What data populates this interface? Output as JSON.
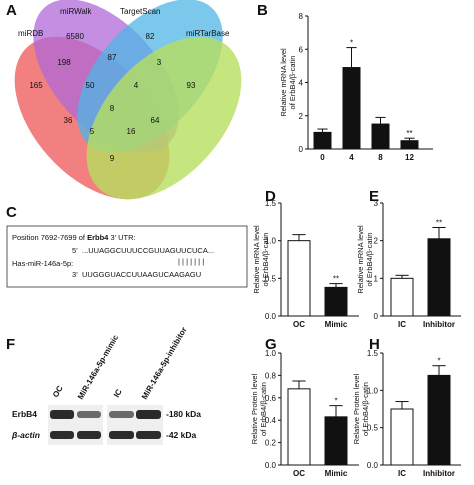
{
  "panels": {
    "A": "A",
    "B": "B",
    "C": "C",
    "D": "D",
    "E": "E",
    "F": "F",
    "G": "G",
    "H": "H"
  },
  "venn": {
    "sets": [
      {
        "name": "miRDB",
        "color": "#f06a6a"
      },
      {
        "name": "miRWalk",
        "color": "#b06ad8"
      },
      {
        "name": "TargetScan",
        "color": "#4fb5e6"
      },
      {
        "name": "miRTarBase",
        "color": "#b7df5e"
      }
    ],
    "regions": [
      "6580",
      "82",
      "165",
      "93",
      "198",
      "87",
      "3",
      "50",
      "4",
      "8",
      "36",
      "64",
      "5",
      "16",
      "9"
    ]
  },
  "sequence": {
    "position_text": "Position 7692-7699 of",
    "gene": "Erbb4",
    "utr": "3’ UTR:",
    "line1_prefix": "5’",
    "line1_seq": "...UUAGGCUUUCCGUUAGUUCUCA...",
    "bars": "| | | | | | |",
    "line2_label": "Has-miR-146a-5p:",
    "line2_prefix": "3’",
    "line2_seq": "UUGGGUACCUUAAGUCAAGAGU"
  },
  "western": {
    "columns": [
      "OC",
      "MiR-146a-5p-mimic",
      "IC",
      "MiR-146a-5p-inhibitor"
    ],
    "rows": [
      {
        "label": "ErbB4",
        "size": "-180 kDa"
      },
      {
        "label": "β-actin",
        "size": "-42 kDa"
      }
    ]
  },
  "chart_data": [
    {
      "panel": "B",
      "type": "bar",
      "categories": [
        "0",
        "4",
        "8",
        "12"
      ],
      "values": [
        1.0,
        4.9,
        1.5,
        0.5
      ],
      "errors": [
        0.2,
        1.2,
        0.4,
        0.15
      ],
      "significance": [
        "",
        "*",
        "",
        "**"
      ],
      "ylabel": "Relative mRNA level of ErbB4/β-catin",
      "ylim": [
        0,
        8
      ],
      "yticks": [
        "0",
        "2",
        "4",
        "6",
        "8"
      ],
      "color": "#111111"
    },
    {
      "panel": "D",
      "type": "bar",
      "categories": [
        "OC",
        "Mimic"
      ],
      "values": [
        1.0,
        0.38
      ],
      "errors": [
        0.08,
        0.05
      ],
      "significance": [
        "",
        "**"
      ],
      "ylabel": "Relative mRNA level of ErbB4/β-catin",
      "ylim": [
        0,
        1.5
      ],
      "yticks": [
        "0.0",
        "0.5",
        "1.0",
        "1.5"
      ],
      "fills": [
        "#ffffff",
        "#111111"
      ]
    },
    {
      "panel": "E",
      "type": "bar",
      "categories": [
        "IC",
        "Inhibitor"
      ],
      "values": [
        1.0,
        2.05
      ],
      "errors": [
        0.08,
        0.3
      ],
      "significance": [
        "",
        "**"
      ],
      "ylabel": "Relative mRNA level of ErbB4/β-catin",
      "ylim": [
        0,
        3
      ],
      "yticks": [
        "0",
        "1",
        "2",
        "3"
      ],
      "fills": [
        "#ffffff",
        "#111111"
      ]
    },
    {
      "panel": "G",
      "type": "bar",
      "categories": [
        "OC",
        "Mimic"
      ],
      "values": [
        0.68,
        0.43
      ],
      "errors": [
        0.07,
        0.1
      ],
      "significance": [
        "",
        "*"
      ],
      "ylabel": "Relative Protein level of ErbB4/β-catin",
      "ylim": [
        0,
        1.0
      ],
      "yticks": [
        "0.0",
        "0.2",
        "0.4",
        "0.6",
        "0.8",
        "1.0"
      ],
      "fills": [
        "#ffffff",
        "#111111"
      ]
    },
    {
      "panel": "H",
      "type": "bar",
      "categories": [
        "IC",
        "Inhibitor"
      ],
      "values": [
        0.75,
        1.2
      ],
      "errors": [
        0.1,
        0.13
      ],
      "significance": [
        "",
        "*"
      ],
      "ylabel": "Relative Protein level of ErbB4/β-catin",
      "ylim": [
        0,
        1.5
      ],
      "yticks": [
        "0.0",
        "0.5",
        "1.0",
        "1.5"
      ],
      "fills": [
        "#ffffff",
        "#111111"
      ]
    }
  ]
}
